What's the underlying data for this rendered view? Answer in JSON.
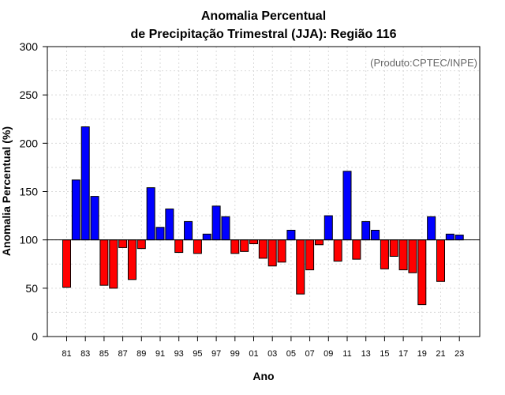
{
  "chart_data": {
    "type": "bar",
    "title_line1": "Anomalia Percentual",
    "title_line2": "de Precipitação Trimestral (JJA): Região 116",
    "xlabel": "Ano",
    "ylabel": "Anomalia Percentual (%)",
    "credit": "(Produto:CPTEC/INPE)",
    "ylim": [
      0,
      300
    ],
    "yticks": [
      0,
      50,
      100,
      150,
      200,
      250,
      300
    ],
    "baseline": 100,
    "grid": true,
    "colors": {
      "above": "#0000ff",
      "below": "#ff0000",
      "edge": "#000000",
      "grid": "#d9d9d9"
    },
    "categories": [
      "81",
      "82",
      "83",
      "84",
      "85",
      "86",
      "87",
      "88",
      "89",
      "90",
      "91",
      "92",
      "93",
      "94",
      "95",
      "96",
      "97",
      "98",
      "99",
      "00",
      "01",
      "02",
      "03",
      "04",
      "05",
      "06",
      "07",
      "08",
      "09",
      "10",
      "11",
      "12",
      "13",
      "14",
      "15",
      "16",
      "17",
      "18",
      "19",
      "20",
      "21",
      "22",
      "23"
    ],
    "xtick_labels": [
      "81",
      "83",
      "85",
      "87",
      "89",
      "91",
      "93",
      "95",
      "97",
      "99",
      "01",
      "03",
      "05",
      "07",
      "09",
      "11",
      "13",
      "15",
      "17",
      "19",
      "21",
      "23"
    ],
    "values": [
      51,
      162,
      217,
      145,
      53,
      50,
      92,
      59,
      91,
      154,
      113,
      132,
      87,
      119,
      86,
      106,
      135,
      124,
      86,
      88,
      96,
      81,
      73,
      77,
      110,
      44,
      69,
      95,
      125,
      78,
      171,
      80,
      119,
      110,
      70,
      83,
      69,
      66,
      33,
      124,
      57,
      106,
      105
    ]
  }
}
